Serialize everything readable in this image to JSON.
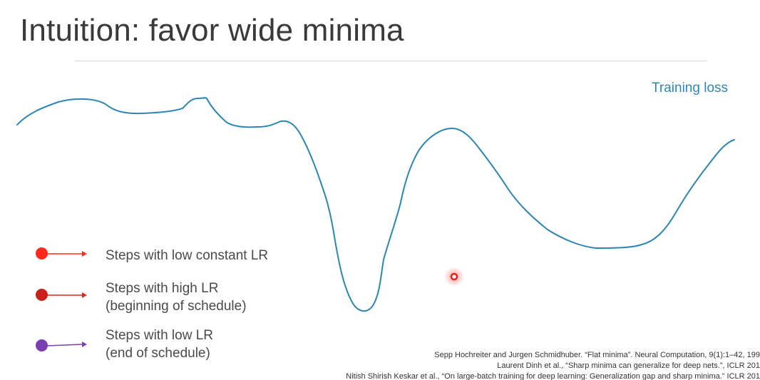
{
  "slide": {
    "title": "Intuition: favor wide minima"
  },
  "plot": {
    "curve_label": "Training loss",
    "curve_color": "#2a86b4",
    "marker_color": "#e8201c"
  },
  "legend": [
    {
      "lines": [
        "Steps with low constant LR"
      ],
      "color": "#ff2a1a"
    },
    {
      "lines": [
        "Steps with high LR",
        "(beginning of schedule)"
      ],
      "color": "#c8201a"
    },
    {
      "lines": [
        "Steps with low LR",
        "(end of schedule)"
      ],
      "color": "#7a3fb2"
    }
  ],
  "references": [
    "Sepp Hochreiter and Jurgen Schmidhuber. “Flat minima”. Neural Computation, 9(1):1–42, 199",
    "Laurent Dinh et al., “Sharp minima can generalize for deep nets.”, ICLR 201",
    "Nitish Shirish Keskar et al., “On large-batch training for deep learning: Generalization gap and sharp minima.” ICLR 201"
  ]
}
